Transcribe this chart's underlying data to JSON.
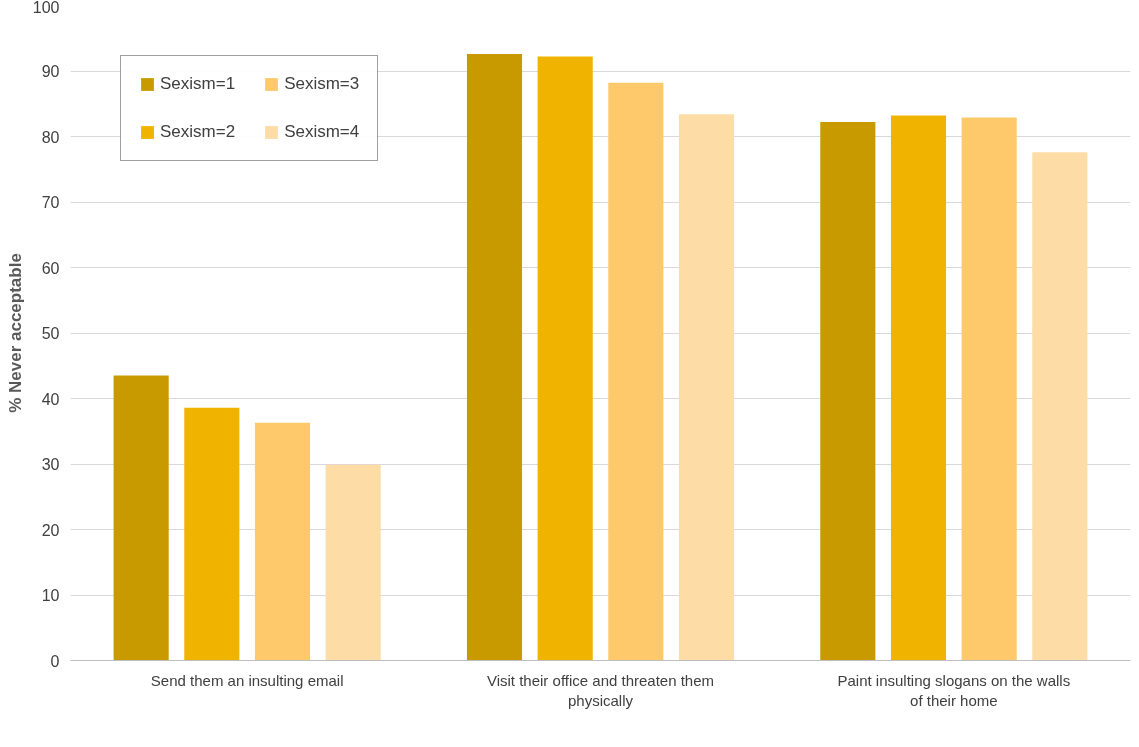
{
  "chart_data": {
    "type": "bar",
    "ylabel": "% Never acceptable",
    "categories": [
      "Send them an insulting email",
      "Visit their office and threaten them physically",
      "Paint insulting slogans on the walls of their home"
    ],
    "series": [
      {
        "name": "Sexism=1",
        "color": "#c99a00",
        "values": [
          43.5,
          92.6,
          82.2
        ]
      },
      {
        "name": "Sexism=2",
        "color": "#f0b400",
        "values": [
          38.6,
          92.2,
          83.2
        ]
      },
      {
        "name": "Sexism=3",
        "color": "#fdc96b",
        "values": [
          36.3,
          88.2,
          82.9
        ]
      },
      {
        "name": "Sexism=4",
        "color": "#fddca6",
        "values": [
          29.9,
          83.4,
          77.6
        ]
      }
    ],
    "ylim": [
      0,
      100
    ],
    "yticks": [
      0,
      10,
      20,
      30,
      40,
      50,
      60,
      70,
      80,
      90,
      100
    ],
    "grid": "y",
    "legend": "top left"
  }
}
